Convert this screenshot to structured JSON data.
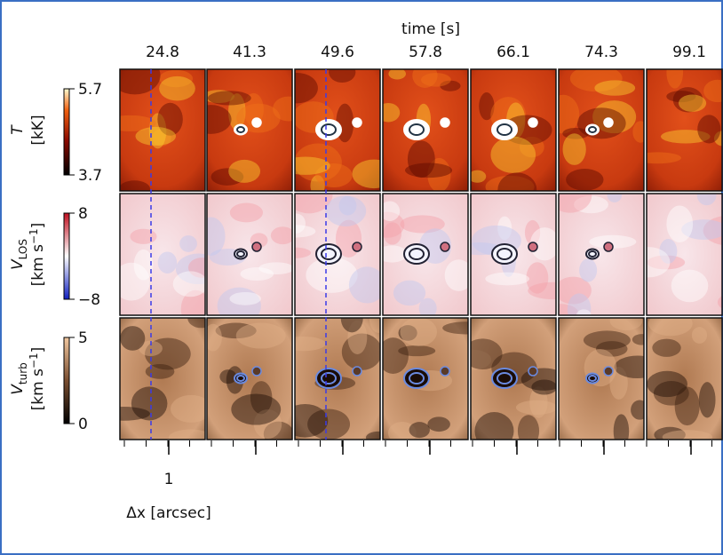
{
  "figure": {
    "title": "time [s]",
    "times": [
      "24.8",
      "41.3",
      "49.6",
      "57.8",
      "66.1",
      "74.3",
      "99.1"
    ],
    "rows": [
      {
        "symbol": "T",
        "unit": "[kK]",
        "max_label": "5.7",
        "min_label": "3.7"
      },
      {
        "symbol": "V",
        "subscript": "LOS",
        "unit": "[km s",
        "unit_exp": "−1",
        "unit_end": "]",
        "max_label": "8",
        "min_label": "−8"
      },
      {
        "symbol": "V",
        "subscript": "turb",
        "unit": "[km s",
        "unit_exp": "−1",
        "unit_end": "]",
        "max_label": "5",
        "min_label": "0"
      }
    ],
    "x_tick": "1",
    "x_label": "Δx [arcsec]"
  }
}
